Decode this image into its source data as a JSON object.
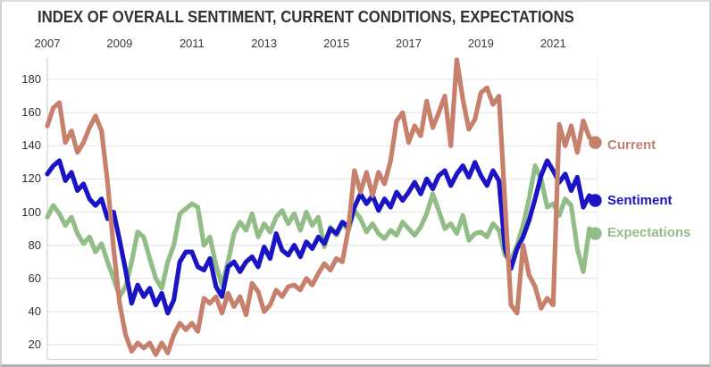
{
  "title": "INDEX OF OVERALL SENTIMENT, CURRENT CONDITIONS, EXPECTATIONS",
  "colors": {
    "current": "#c6806c",
    "sentiment": "#1a14c4",
    "expectations": "#92bd87",
    "gridline": "#e7e7e7",
    "axis_line": "#d8d8d8",
    "title_text": "#333333",
    "tick_text": "#333333",
    "background": "#ffffff"
  },
  "chart_data": {
    "type": "line",
    "title": "INDEX OF OVERALL SENTIMENT, CURRENT CONDITIONS, EXPECTATIONS",
    "xlabel": "",
    "ylabel": "",
    "x_start": 2007.0,
    "x_step_years": 0.16667,
    "x_tick_labels": [
      "2007",
      "2009",
      "2011",
      "2013",
      "2015",
      "2017",
      "2019",
      "2021"
    ],
    "y_ticks": [
      20,
      40,
      60,
      80,
      100,
      120,
      140,
      160,
      180
    ],
    "ylim": [
      11,
      196
    ],
    "grid": "horizontal",
    "legend_position": "right",
    "series": [
      {
        "name": "Current",
        "color": "#c6806c",
        "values": [
          152,
          163,
          166,
          142,
          149,
          136,
          142,
          151,
          158,
          149,
          118,
          78,
          45,
          26,
          16,
          21,
          18,
          21,
          14,
          21,
          15,
          26,
          33,
          29,
          33,
          28,
          48,
          45,
          49,
          39,
          51,
          43,
          49,
          38,
          57,
          52,
          40,
          44,
          53,
          49,
          55,
          56,
          53,
          60,
          56,
          63,
          69,
          65,
          72,
          70,
          90,
          125,
          112,
          124,
          110,
          124,
          117,
          131,
          155,
          160,
          142,
          152,
          146,
          167,
          151,
          160,
          170,
          140,
          192,
          168,
          150,
          156,
          172,
          175,
          165,
          170,
          105,
          44,
          39,
          80,
          62,
          55,
          42,
          48,
          44,
          153,
          140,
          152,
          136,
          155,
          145,
          142
        ]
      },
      {
        "name": "Sentiment",
        "color": "#1a14c4",
        "values": [
          123,
          128,
          131,
          119,
          124,
          113,
          117,
          108,
          104,
          108,
          96,
          100,
          83,
          65,
          45,
          56,
          49,
          54,
          44,
          51,
          39,
          47,
          70,
          76,
          76,
          67,
          65,
          72,
          55,
          49,
          67,
          70,
          64,
          70,
          73,
          67,
          79,
          72,
          87,
          77,
          74,
          80,
          73,
          82,
          78,
          85,
          81,
          90,
          87,
          94,
          91,
          103,
          111,
          105,
          110,
          101,
          108,
          103,
          112,
          107,
          112,
          118,
          111,
          120,
          114,
          122,
          125,
          116,
          123,
          128,
          121,
          130,
          122,
          116,
          125,
          119,
          78,
          66,
          78,
          85,
          95,
          108,
          122,
          131,
          125,
          118,
          123,
          113,
          121,
          103,
          110,
          107
        ]
      },
      {
        "name": "Expectations",
        "color": "#92bd87",
        "values": [
          97,
          104,
          99,
          92,
          97,
          87,
          81,
          85,
          76,
          81,
          70,
          60,
          49,
          55,
          70,
          88,
          85,
          72,
          60,
          54,
          70,
          80,
          99,
          102,
          105,
          103,
          80,
          85,
          68,
          56,
          70,
          87,
          94,
          89,
          99,
          85,
          93,
          88,
          97,
          101,
          93,
          99,
          89,
          100,
          92,
          97,
          79,
          91,
          86,
          93,
          89,
          101,
          96,
          88,
          93,
          87,
          84,
          89,
          86,
          94,
          90,
          86,
          91,
          99,
          111,
          101,
          90,
          93,
          87,
          98,
          83,
          87,
          88,
          85,
          93,
          89,
          74,
          71,
          80,
          92,
          108,
          128,
          120,
          103,
          105,
          98,
          108,
          104,
          78,
          64,
          90,
          87
        ]
      }
    ]
  }
}
